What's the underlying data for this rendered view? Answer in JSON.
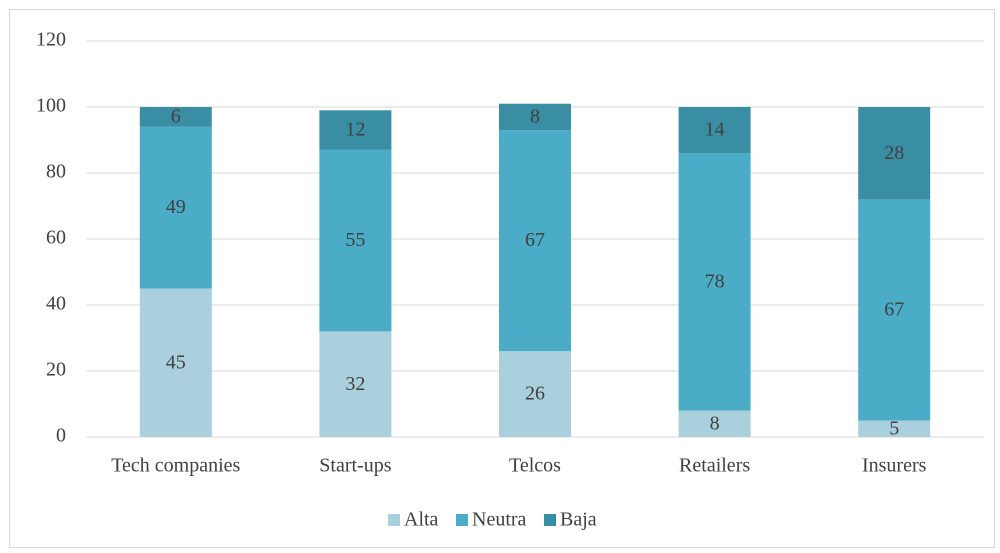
{
  "chart_data": {
    "type": "stacked_bar",
    "categories": [
      "Tech companies",
      "Start-ups",
      "Telcos",
      "Retailers",
      "Insurers"
    ],
    "series": [
      {
        "name": "Alta",
        "color": "#a9d0dc",
        "values": [
          45,
          32,
          26,
          8,
          5
        ]
      },
      {
        "name": "Neutra",
        "color": "#4aacc6",
        "values": [
          49,
          55,
          67,
          78,
          67
        ]
      },
      {
        "name": "Baja",
        "color": "#3a8ea3",
        "values": [
          6,
          12,
          8,
          14,
          28
        ]
      }
    ],
    "ylim": [
      0,
      120
    ],
    "yticks": [
      0,
      20,
      40,
      60,
      80,
      100,
      120
    ],
    "grid": true,
    "legend": "bottom"
  }
}
